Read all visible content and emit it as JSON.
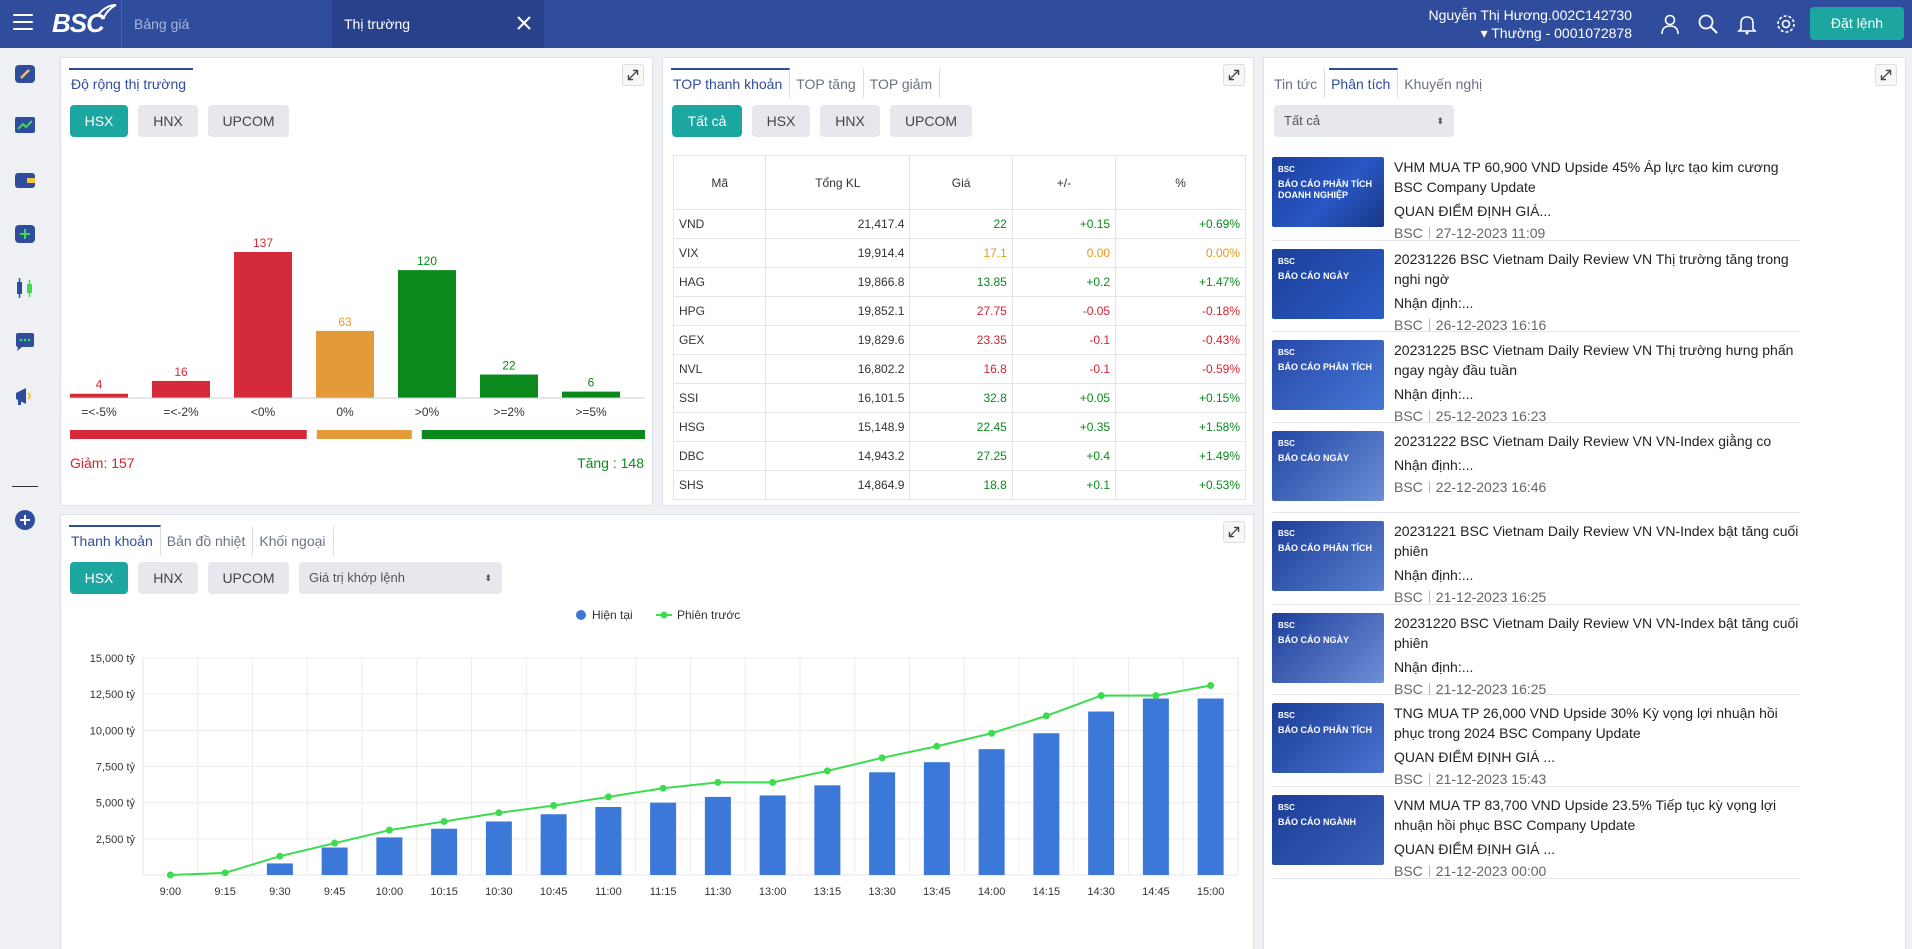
{
  "header": {
    "logo": "BSC",
    "tabs": [
      {
        "label": "Bảng giá"
      },
      {
        "label": "Thị trường"
      }
    ],
    "user_name": "Nguyễn Thị Hương.002C142730",
    "account": "▾ Thường - 0001072878",
    "order_button": "Đặt lệnh"
  },
  "breadth": {
    "tabs": [
      "Độ rộng thị trường"
    ],
    "exchanges": [
      "HSX",
      "HNX",
      "UPCOM"
    ],
    "categories": [
      "=<-5%",
      "=<-2%",
      "<0%",
      "0%",
      ">0%",
      ">=2%",
      ">=5%"
    ],
    "values": [
      4,
      16,
      137,
      63,
      120,
      22,
      6
    ],
    "colors": [
      "#d42a3a",
      "#d42a3a",
      "#d42a3a",
      "#e39a38",
      "#0a8a1c",
      "#0a8a1c",
      "#0a8a1c"
    ],
    "decrease_label": "Giảm: 157",
    "increase_label": "Tăng : 148"
  },
  "top": {
    "tabs": [
      "TOP thanh khoản",
      "TOP tăng",
      "TOP giảm"
    ],
    "filters": [
      "Tất cả",
      "HSX",
      "HNX",
      "UPCOM"
    ],
    "columns": [
      "Mã",
      "Tổng KL",
      "Giá",
      "+/-",
      "%"
    ],
    "rows": [
      {
        "code": "VND",
        "vol": "21,417.4",
        "price": "22",
        "chg": "+0.15",
        "pct": "+0.69%",
        "c": "g"
      },
      {
        "code": "VIX",
        "vol": "19,914.4",
        "price": "17.1",
        "chg": "0.00",
        "pct": "0.00%",
        "c": "y"
      },
      {
        "code": "HAG",
        "vol": "19,866.8",
        "price": "13.85",
        "chg": "+0.2",
        "pct": "+1.47%",
        "c": "g"
      },
      {
        "code": "HPG",
        "vol": "19,852.1",
        "price": "27.75",
        "chg": "-0.05",
        "pct": "-0.18%",
        "c": "r"
      },
      {
        "code": "GEX",
        "vol": "19,829.6",
        "price": "23.35",
        "chg": "-0.1",
        "pct": "-0.43%",
        "c": "r"
      },
      {
        "code": "NVL",
        "vol": "16,802.2",
        "price": "16.8",
        "chg": "-0.1",
        "pct": "-0.59%",
        "c": "r"
      },
      {
        "code": "SSI",
        "vol": "16,101.5",
        "price": "32.8",
        "chg": "+0.05",
        "pct": "+0.15%",
        "c": "g"
      },
      {
        "code": "HSG",
        "vol": "15,148.9",
        "price": "22.45",
        "chg": "+0.35",
        "pct": "+1.58%",
        "c": "g"
      },
      {
        "code": "DBC",
        "vol": "14,943.2",
        "price": "27.25",
        "chg": "+0.4",
        "pct": "+1.49%",
        "c": "g"
      },
      {
        "code": "SHS",
        "vol": "14,864.9",
        "price": "18.8",
        "chg": "+0.1",
        "pct": "+0.53%",
        "c": "g"
      }
    ]
  },
  "liquidity": {
    "tabs": [
      "Thanh khoản",
      "Bản đồ nhiệt",
      "Khối ngoại"
    ],
    "exchanges": [
      "HSX",
      "HNX",
      "UPCOM"
    ],
    "metric_select": "Giá trị khớp lệnh"
  },
  "news": {
    "tabs": [
      "Tin tức",
      "Phân tích",
      "Khuyến nghị"
    ],
    "filter": "Tất cả",
    "items": [
      {
        "title": "VHM MUA TP 60,900 VND Upside 45% Áp lực tạo kim cương BSC Company Update",
        "summary": "QUAN ĐIỂM ĐỊNH GIÁ...",
        "source": "BSC",
        "date": "27-12-2023 11:09",
        "thumb": "BÁO CÁO PHÂN TÍCH DOANH NGHIỆP"
      },
      {
        "title": "20231226 BSC Vietnam Daily Review VN Thị trường tăng trong nghi ngờ",
        "summary": "Nhận định:...",
        "source": "BSC",
        "date": "26-12-2023 16:16",
        "thumb": "BÁO CÁO NGÀY"
      },
      {
        "title": "20231225 BSC Vietnam Daily Review VN Thị trường hưng phấn ngay ngày đầu tuần",
        "summary": "Nhận định:...",
        "source": "BSC",
        "date": "25-12-2023 16:23",
        "thumb": "BÁO CÁO PHÂN TÍCH"
      },
      {
        "title": "20231222 BSC Vietnam Daily Review VN VN-Index giằng co",
        "summary": "Nhận định:...",
        "source": "BSC",
        "date": "22-12-2023 16:46",
        "thumb": "BÁO CÁO NGÀY"
      },
      {
        "title": "20231221 BSC Vietnam Daily Review VN VN-Index bật tăng cuối phiên",
        "summary": "Nhận định:...",
        "source": "BSC",
        "date": "21-12-2023 16:25",
        "thumb": "BÁO CÁO PHÂN TÍCH"
      },
      {
        "title": "20231220 BSC Vietnam Daily Review VN VN-Index bật tăng cuối phiên",
        "summary": "Nhận định:...",
        "source": "BSC",
        "date": "21-12-2023 16:25",
        "thumb": "BÁO CÁO NGÀY"
      },
      {
        "title": "TNG MUA TP 26,000 VND Upside 30% Kỳ vọng lợi nhuận hồi phục trong 2024 BSC Company Update",
        "summary": "QUAN ĐIỂM ĐỊNH GIÁ ...",
        "source": "BSC",
        "date": "21-12-2023 15:43",
        "thumb": "BÁO CÁO PHÂN TÍCH"
      },
      {
        "title": "VNM MUA TP 83,700 VND Upside 23.5% Tiếp tục kỳ vọng lợi nhuận hồi phục BSC Company Update",
        "summary": "QUAN ĐIỂM ĐỊNH GIÁ ...",
        "source": "BSC",
        "date": "21-12-2023 00:00",
        "thumb": "BÁO CÁO NGÀNH"
      }
    ]
  },
  "chart_data": {
    "type": "bar",
    "categories": [
      "9:00",
      "9:15",
      "9:30",
      "9:45",
      "10:00",
      "10:15",
      "10:30",
      "10:45",
      "11:00",
      "11:15",
      "11:30",
      "13:00",
      "13:15",
      "13:30",
      "13:45",
      "14:00",
      "14:15",
      "14:30",
      "14:45",
      "15:00"
    ],
    "series": [
      {
        "name": "Hiện tại",
        "type": "bar",
        "color": "#3b78d8",
        "values": [
          0,
          0,
          800,
          1900,
          2600,
          3200,
          3700,
          4200,
          4700,
          5000,
          5400,
          5500,
          6200,
          7100,
          7800,
          8700,
          9800,
          11300,
          12200,
          12200
        ]
      },
      {
        "name": "Phiên trước",
        "type": "line",
        "color": "#3cdc4f",
        "values": [
          0,
          150,
          1300,
          2200,
          3100,
          3700,
          4300,
          4800,
          5400,
          6000,
          6400,
          6400,
          7200,
          8100,
          8900,
          9800,
          11000,
          12400,
          12400,
          13100
        ]
      }
    ],
    "yticks": [
      "2,500 tỷ",
      "5,000 tỷ",
      "7,500 tỷ",
      "10,000 tỷ",
      "12,500 tỷ",
      "15,000 tỷ"
    ],
    "ylim": [
      0,
      15000
    ],
    "grid": true,
    "legend": "top-center"
  }
}
